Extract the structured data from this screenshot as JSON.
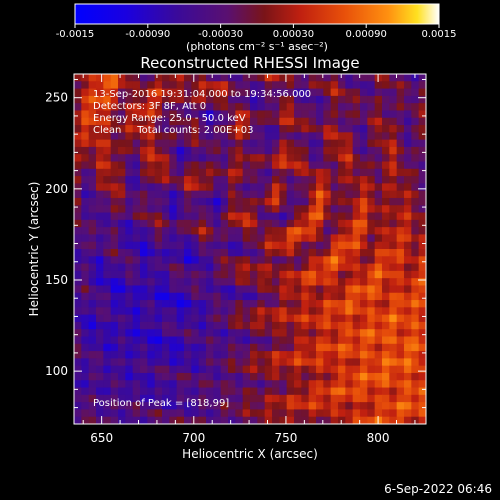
{
  "colorbar": {
    "ticks": [
      "-0.0015",
      "-0.00090",
      "-0.00030",
      "0.00030",
      "0.00090",
      "0.0015"
    ],
    "tick_values": [
      -0.0015,
      -0.0009,
      -0.0003,
      0.0003,
      0.0009,
      0.0015
    ],
    "range": [
      -0.0015,
      0.0015
    ],
    "units_label": "(photons cm⁻² s⁻¹ asec⁻²)",
    "colors": [
      "#0000ff",
      "#2000d0",
      "#3a0a9a",
      "#5a1070",
      "#8a1418",
      "#c02010",
      "#e8500a",
      "#ff9010",
      "#ffe020",
      "#ffffff"
    ]
  },
  "plot": {
    "title": "Reconstructed RHESSI Image",
    "annotations": [
      "13-Sep-2016 19:31:04.000 to 19:34:56.000",
      "Detectors: 3F 8F, Att 0",
      "Energy Range: 25.0 - 50.0 keV",
      "Clean     Total counts: 2.00E+03"
    ],
    "peak_label": "Position of Peak = [818,99]"
  },
  "footer": {
    "timestamp": "6-Sep-2022 06:46"
  },
  "chart_data": {
    "type": "heatmap",
    "title": "Reconstructed RHESSI Image",
    "xlabel": "Heliocentric X (arcsec)",
    "ylabel": "Heliocentric Y (arcsec)",
    "xlim": [
      635,
      826
    ],
    "ylim": [
      71,
      263
    ],
    "xticks": [
      650,
      700,
      750,
      800
    ],
    "yticks": [
      100,
      150,
      200,
      250
    ],
    "grid": false,
    "colorbar_label": "(photons cm⁻² s⁻¹ asec⁻²)",
    "colorbar_range": [
      -0.0015,
      0.0015
    ],
    "peak": [
      818,
      99
    ],
    "pixel_grid": [
      48,
      48
    ]
  }
}
